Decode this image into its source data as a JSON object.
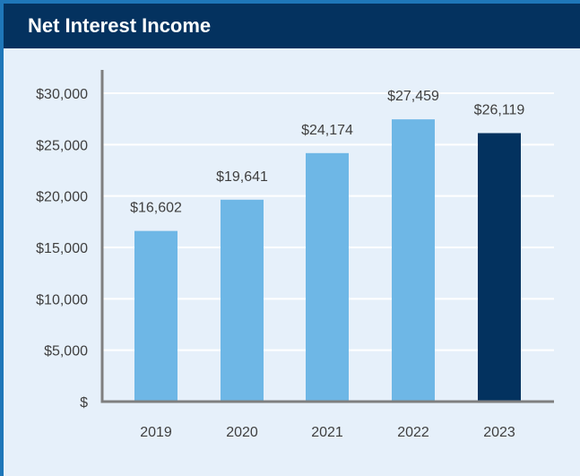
{
  "title": "Net Interest Income",
  "chart_data": {
    "type": "bar",
    "title": "Net Interest Income",
    "xlabel": "",
    "ylabel": "",
    "categories": [
      "2019",
      "2020",
      "2021",
      "2022",
      "2023"
    ],
    "values": [
      16602,
      19641,
      24174,
      27459,
      26119
    ],
    "value_labels": [
      "$16,602",
      "$19,641",
      "$24,174",
      "$27,459",
      "$26,119"
    ],
    "y_ticks": [
      0,
      5000,
      10000,
      15000,
      20000,
      25000,
      30000
    ],
    "y_tick_labels": [
      "$",
      "$5,000",
      "$10,000",
      "$15,000",
      "$20,000",
      "$25,000",
      "$30,000"
    ],
    "ylim": [
      0,
      30000
    ],
    "grid": true,
    "legend": "none",
    "colors": {
      "bar": "#6eb7e6",
      "highlight_bar": "#03325f",
      "grid": "#ffffff",
      "axis": "#7f7f7f",
      "text": "#3f3f3f"
    },
    "highlight_index": 4
  }
}
